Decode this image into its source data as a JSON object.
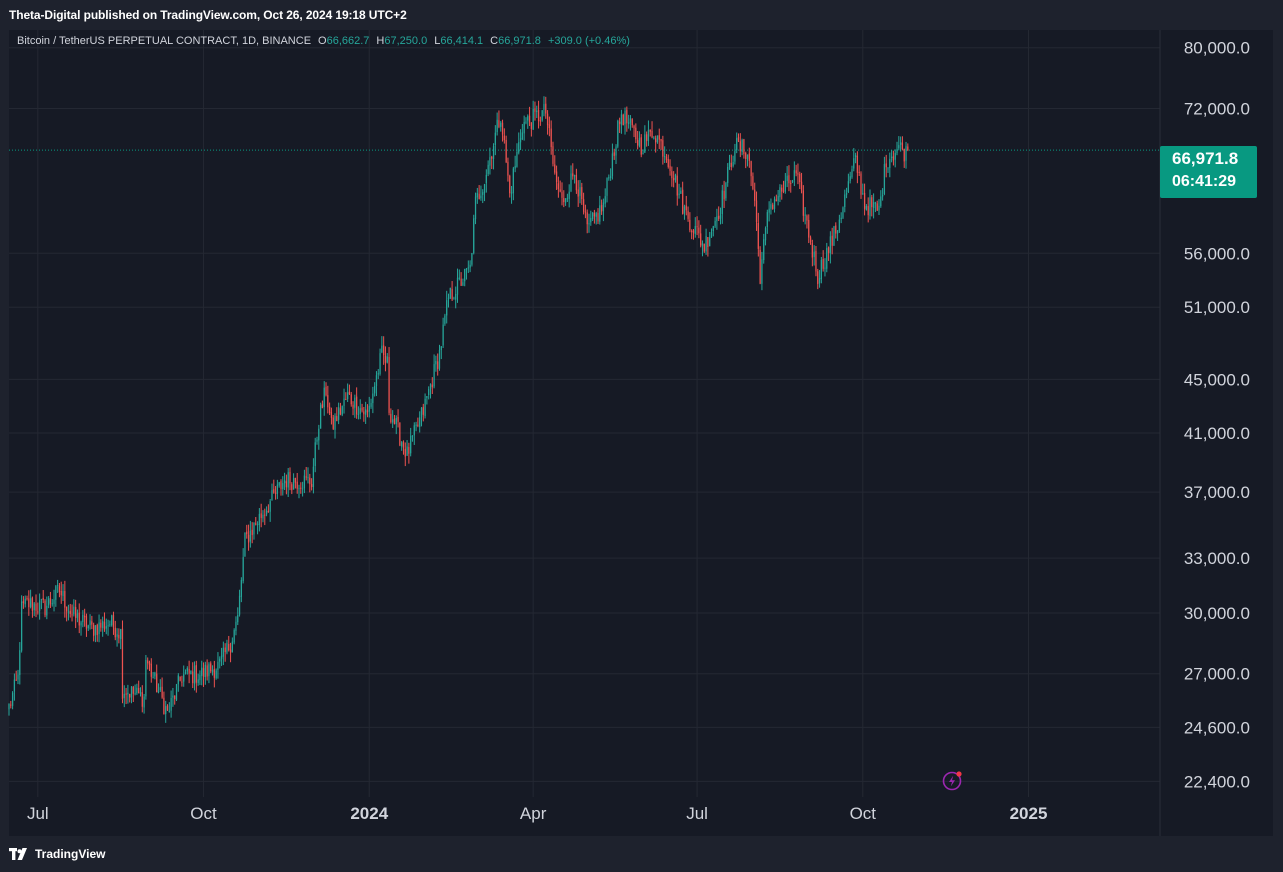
{
  "publish_note": "Theta-Digital published on TradingView.com, Oct 26, 2024 19:18 UTC+2",
  "legend": {
    "symbol": "Bitcoin / TetherUS PERPETUAL CONTRACT, 1D, BINANCE",
    "open_key": "O",
    "open": "66,662.7",
    "high_key": "H",
    "high": "67,250.0",
    "low_key": "L",
    "low": "66,414.1",
    "close_key": "C",
    "close": "66,971.8",
    "change": "+309.0 (+0.46%)"
  },
  "price_tag": {
    "price": "66,971.8",
    "countdown": "06:41:29"
  },
  "footer": {
    "brand": "TradingView"
  },
  "colors": {
    "background": "#161a25",
    "grid": "#242833",
    "up": "#26a69a",
    "down": "#ef5350",
    "tag": "#089981",
    "text": "#d1d4dc"
  },
  "icons": [
    "tradingview-logo-icon",
    "lightning-icon"
  ],
  "chart_data": {
    "type": "candlestick",
    "scale": "log",
    "ylim": [
      21800,
      82500
    ],
    "y_ticks": [
      {
        "value": 80000,
        "label": "80,000.0"
      },
      {
        "value": 72000,
        "label": "72,000.0"
      },
      {
        "value": 56000,
        "label": "56,000.0"
      },
      {
        "value": 51000,
        "label": "51,000.0"
      },
      {
        "value": 45000,
        "label": "45,000.0"
      },
      {
        "value": 41000,
        "label": "41,000.0"
      },
      {
        "value": 37000,
        "label": "37,000.0"
      },
      {
        "value": 33000,
        "label": "33,000.0"
      },
      {
        "value": 30000,
        "label": "30,000.0"
      },
      {
        "value": 27000,
        "label": "27,000.0"
      },
      {
        "value": 24600,
        "label": "24,600.0"
      },
      {
        "value": 22400,
        "label": "22,400.0"
      }
    ],
    "x_range": [
      "2023-06-15",
      "2025-03-15"
    ],
    "x_ticks": [
      {
        "date": "2023-07-01",
        "label": "Jul",
        "bold": false
      },
      {
        "date": "2023-10-01",
        "label": "Oct",
        "bold": false
      },
      {
        "date": "2024-01-01",
        "label": "2024",
        "bold": true
      },
      {
        "date": "2024-04-01",
        "label": "Apr",
        "bold": false
      },
      {
        "date": "2024-07-01",
        "label": "Jul",
        "bold": false
      },
      {
        "date": "2024-10-01",
        "label": "Oct",
        "bold": false
      },
      {
        "date": "2025-01-01",
        "label": "2025",
        "bold": true
      }
    ],
    "grid": true,
    "last_price": 66971.8,
    "start_date": "2023-06-15",
    "close_path": [
      [
        "2023-06-15",
        25500
      ],
      [
        "2023-06-20",
        26800
      ],
      [
        "2023-06-22",
        30200
      ],
      [
        "2023-06-25",
        30500
      ],
      [
        "2023-07-05",
        30300
      ],
      [
        "2023-07-13",
        31200
      ],
      [
        "2023-07-20",
        29900
      ],
      [
        "2023-07-31",
        29200
      ],
      [
        "2023-08-10",
        29500
      ],
      [
        "2023-08-16",
        29000
      ],
      [
        "2023-08-17",
        26300
      ],
      [
        "2023-08-29",
        25900
      ],
      [
        "2023-08-30",
        27700
      ],
      [
        "2023-09-11",
        25200
      ],
      [
        "2023-09-19",
        26900
      ],
      [
        "2023-09-30",
        27000
      ],
      [
        "2023-10-10",
        27400
      ],
      [
        "2023-10-16",
        28500
      ],
      [
        "2023-10-20",
        29700
      ],
      [
        "2023-10-24",
        34000
      ],
      [
        "2023-11-01",
        35400
      ],
      [
        "2023-11-09",
        36700
      ],
      [
        "2023-11-15",
        37800
      ],
      [
        "2023-11-30",
        37700
      ],
      [
        "2023-12-04",
        41900
      ],
      [
        "2023-12-08",
        44200
      ],
      [
        "2023-12-11",
        41400
      ],
      [
        "2023-12-20",
        43700
      ],
      [
        "2023-12-31",
        42300
      ],
      [
        "2024-01-08",
        47000
      ],
      [
        "2024-01-11",
        46200
      ],
      [
        "2024-01-12",
        42800
      ],
      [
        "2024-01-22",
        39500
      ],
      [
        "2024-01-31",
        42600
      ],
      [
        "2024-02-09",
        47100
      ],
      [
        "2024-02-14",
        51800
      ],
      [
        "2024-02-26",
        54500
      ],
      [
        "2024-02-29",
        61100
      ],
      [
        "2024-03-05",
        63700
      ],
      [
        "2024-03-14",
        71400
      ],
      [
        "2024-03-19",
        62000
      ],
      [
        "2024-03-26",
        70000
      ],
      [
        "2024-04-08",
        71600
      ],
      [
        "2024-04-13",
        64000
      ],
      [
        "2024-04-17",
        61200
      ],
      [
        "2024-04-24",
        64500
      ],
      [
        "2024-05-01",
        58300
      ],
      [
        "2024-05-10",
        60800
      ],
      [
        "2024-05-15",
        66200
      ],
      [
        "2024-05-20",
        71400
      ],
      [
        "2024-05-31",
        67500
      ],
      [
        "2024-06-07",
        69300
      ],
      [
        "2024-06-15",
        66000
      ],
      [
        "2024-06-24",
        60300
      ],
      [
        "2024-07-05",
        56700
      ],
      [
        "2024-07-14",
        60800
      ],
      [
        "2024-07-22",
        67500
      ],
      [
        "2024-07-29",
        66800
      ],
      [
        "2024-08-02",
        61400
      ],
      [
        "2024-08-05",
        54000
      ],
      [
        "2024-08-10",
        60800
      ],
      [
        "2024-08-25",
        64200
      ],
      [
        "2024-09-06",
        53900
      ],
      [
        "2024-09-16",
        58200
      ],
      [
        "2024-09-27",
        65800
      ],
      [
        "2024-10-02",
        61000
      ],
      [
        "2024-10-10",
        60300
      ],
      [
        "2024-10-14",
        65800
      ],
      [
        "2024-10-21",
        67400
      ],
      [
        "2024-10-25",
        66650
      ],
      [
        "2024-10-26",
        66971.8
      ]
    ]
  }
}
